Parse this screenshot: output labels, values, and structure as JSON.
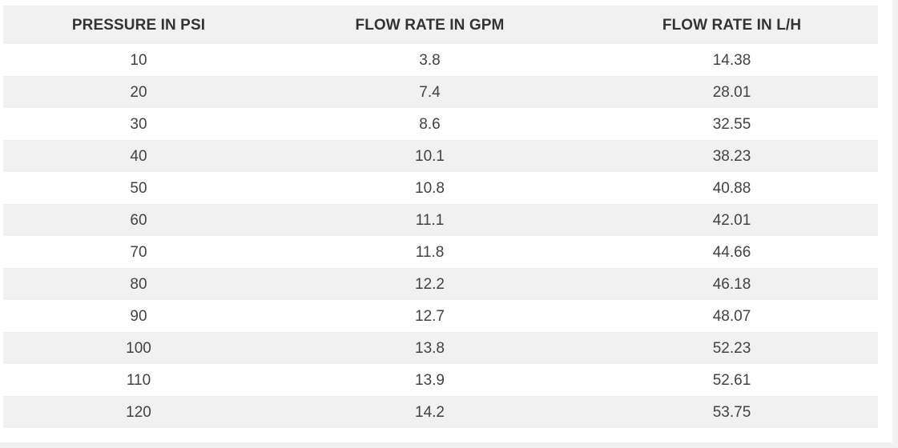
{
  "table": {
    "headers": [
      "PRESSURE IN PSI",
      "FLOW RATE IN GPM",
      "FLOW RATE IN L/H"
    ],
    "rows": [
      [
        "10",
        "3.8",
        "14.38"
      ],
      [
        "20",
        "7.4",
        "28.01"
      ],
      [
        "30",
        "8.6",
        "32.55"
      ],
      [
        "40",
        "10.1",
        "38.23"
      ],
      [
        "50",
        "10.8",
        "40.88"
      ],
      [
        "60",
        "11.1",
        "42.01"
      ],
      [
        "70",
        "11.8",
        "44.66"
      ],
      [
        "80",
        "12.2",
        "46.18"
      ],
      [
        "90",
        "12.7",
        "48.07"
      ],
      [
        "100",
        "13.8",
        "52.23"
      ],
      [
        "110",
        "13.9",
        "52.61"
      ],
      [
        "120",
        "14.2",
        "53.75"
      ]
    ]
  },
  "colors": {
    "stripe": "#f1f1f1",
    "text": "#424242",
    "background": "#ffffff"
  }
}
